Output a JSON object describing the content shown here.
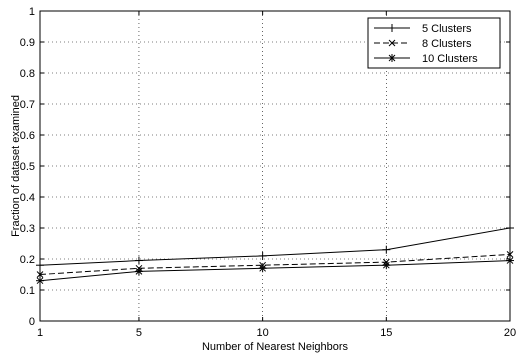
{
  "chart_data": {
    "type": "line",
    "title": "",
    "xlabel": "Number of Nearest Neighbors",
    "ylabel": "Fraction of dataset examined",
    "x": [
      1,
      5,
      10,
      15,
      20
    ],
    "xlim": [
      1,
      20
    ],
    "ylim": [
      0,
      1
    ],
    "x_ticks": [
      "1",
      "5",
      "10",
      "15",
      "20"
    ],
    "y_ticks": [
      "0",
      "0.1",
      "0.2",
      "0.3",
      "0.4",
      "0.5",
      "0.6",
      "0.7",
      "0.8",
      "0.9",
      "1"
    ],
    "grid": true,
    "legend_position": "top-right",
    "series": [
      {
        "name": "5 Clusters",
        "marker": "plus",
        "line_style": "solid",
        "values": [
          0.18,
          0.195,
          0.21,
          0.23,
          0.3
        ]
      },
      {
        "name": "8 Clusters",
        "marker": "x",
        "line_style": "dashed",
        "values": [
          0.15,
          0.17,
          0.18,
          0.19,
          0.215
        ]
      },
      {
        "name": "10 Clusters",
        "marker": "star",
        "line_style": "solid",
        "values": [
          0.13,
          0.16,
          0.17,
          0.18,
          0.195
        ]
      }
    ],
    "colors": {
      "line": "#000000",
      "grid": "#000000",
      "background": "#ffffff"
    }
  }
}
